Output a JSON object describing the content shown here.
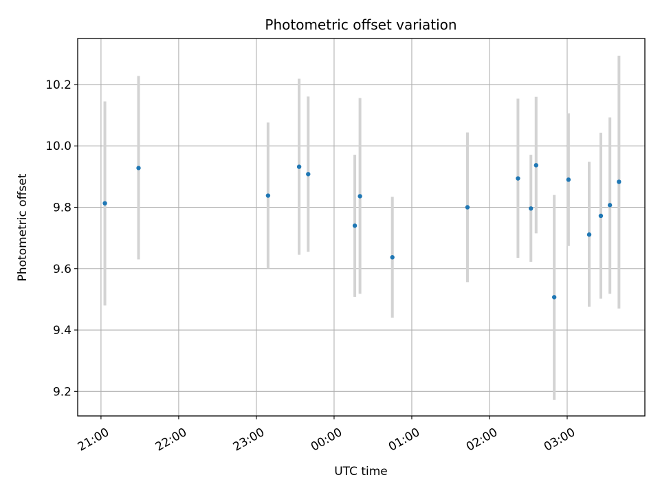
{
  "chart_data": {
    "type": "scatter",
    "title": "Photometric offset variation",
    "xlabel": "UTC time",
    "ylabel": "Photometric offset",
    "xlim": [
      "20:42",
      "04:00"
    ],
    "ylim": [
      9.12,
      10.35
    ],
    "grid": true,
    "xticks": [
      "21:00",
      "22:00",
      "23:00",
      "00:00",
      "01:00",
      "02:00",
      "03:00"
    ],
    "yticks": [
      "9.2",
      "9.4",
      "9.6",
      "9.8",
      "10.0",
      "10.2"
    ],
    "series": [
      {
        "marker_color": "#1f77b4",
        "errorbar_color": "#d3d3d3",
        "points": [
          {
            "x": "21:03",
            "y": 9.813,
            "ylow": 9.48,
            "yhigh": 10.145
          },
          {
            "x": "21:29",
            "y": 9.928,
            "ylow": 9.63,
            "yhigh": 10.228
          },
          {
            "x": "23:09",
            "y": 9.838,
            "ylow": 9.6,
            "yhigh": 10.076
          },
          {
            "x": "23:33",
            "y": 9.932,
            "ylow": 9.645,
            "yhigh": 10.219
          },
          {
            "x": "23:40",
            "y": 9.908,
            "ylow": 9.655,
            "yhigh": 10.161
          },
          {
            "x": "00:16",
            "y": 9.74,
            "ylow": 9.508,
            "yhigh": 9.971
          },
          {
            "x": "00:20",
            "y": 9.836,
            "ylow": 9.518,
            "yhigh": 10.156
          },
          {
            "x": "00:45",
            "y": 9.637,
            "ylow": 9.44,
            "yhigh": 9.834
          },
          {
            "x": "01:43",
            "y": 9.8,
            "ylow": 9.556,
            "yhigh": 10.044
          },
          {
            "x": "02:22",
            "y": 9.894,
            "ylow": 9.635,
            "yhigh": 10.154
          },
          {
            "x": "02:32",
            "y": 9.796,
            "ylow": 9.622,
            "yhigh": 9.971
          },
          {
            "x": "02:36",
            "y": 9.937,
            "ylow": 9.715,
            "yhigh": 10.16
          },
          {
            "x": "02:50",
            "y": 9.507,
            "ylow": 9.172,
            "yhigh": 9.84
          },
          {
            "x": "03:01",
            "y": 9.89,
            "ylow": 9.674,
            "yhigh": 10.106
          },
          {
            "x": "03:17",
            "y": 9.711,
            "ylow": 9.476,
            "yhigh": 9.948
          },
          {
            "x": "03:26",
            "y": 9.772,
            "ylow": 9.502,
            "yhigh": 10.043
          },
          {
            "x": "03:33",
            "y": 9.807,
            "ylow": 9.518,
            "yhigh": 10.093
          },
          {
            "x": "03:40",
            "y": 9.883,
            "ylow": 9.47,
            "yhigh": 10.294
          }
        ]
      }
    ]
  }
}
